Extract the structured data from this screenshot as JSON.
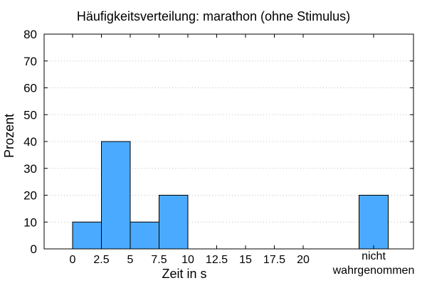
{
  "chart_data": {
    "type": "bar",
    "title": "Häufigkeitsverteilung: marathon (ohne Stimulus)",
    "xlabel": "Zeit in s",
    "ylabel": "Prozent",
    "ylim": [
      0,
      80
    ],
    "yticks": [
      0,
      10,
      20,
      30,
      40,
      50,
      60,
      70,
      80
    ],
    "xticks": [
      "0",
      "2.5",
      "5",
      "7.5",
      "10",
      "12.5",
      "15",
      "17.5",
      "20"
    ],
    "grid": true,
    "bins": [
      {
        "start": 0,
        "end": 2.5,
        "value": 10
      },
      {
        "start": 2.5,
        "end": 5,
        "value": 40
      },
      {
        "start": 5,
        "end": 7.5,
        "value": 10
      },
      {
        "start": 7.5,
        "end": 10,
        "value": 20
      }
    ],
    "extra_bar": {
      "label_line1": "nicht",
      "label_line2": "wahrgenommen",
      "value": 20
    },
    "bar_color": "#4aaaff",
    "bar_edge_color": "#000000"
  }
}
